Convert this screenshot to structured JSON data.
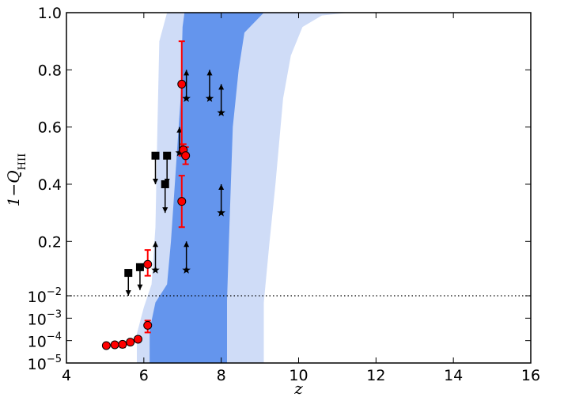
{
  "chart_data": {
    "type": "scatter",
    "title": "",
    "xlabel": "z",
    "ylabel": "1−Q",
    "ylabel_subscript": "HII",
    "xlim": [
      4,
      16
    ],
    "ylim_linear": [
      0.01,
      1.0
    ],
    "ylim_log": [
      1e-05,
      0.01
    ],
    "grid": false,
    "x_ticks": [
      {
        "value": 4,
        "label": "4"
      },
      {
        "value": 6,
        "label": "6"
      },
      {
        "value": 8,
        "label": "8"
      },
      {
        "value": 10,
        "label": "10"
      },
      {
        "value": 12,
        "label": "12"
      },
      {
        "value": 14,
        "label": "14"
      },
      {
        "value": 16,
        "label": "16"
      }
    ],
    "y_ticks_linear": [
      {
        "value": 0.2,
        "label": "0.2"
      },
      {
        "value": 0.4,
        "label": "0.4"
      },
      {
        "value": 0.6,
        "label": "0.6"
      },
      {
        "value": 0.8,
        "label": "0.8"
      },
      {
        "value": 1.0,
        "label": "1.0"
      }
    ],
    "y_ticks_log": [
      {
        "value": 1e-05,
        "base": "10",
        "exp": "-5"
      },
      {
        "value": 0.0001,
        "base": "10",
        "exp": "-4"
      },
      {
        "value": 0.001,
        "base": "10",
        "exp": "-3"
      },
      {
        "value": 0.01,
        "base": "10",
        "exp": "-2"
      }
    ],
    "bands": {
      "outer_color": "#cfdcf7",
      "inner_color": "#6495ed",
      "outer_left": [
        [
          5.82,
          1e-05
        ],
        [
          5.82,
          0.0002
        ],
        [
          6.0,
          0.003
        ],
        [
          6.2,
          0.05
        ],
        [
          6.3,
          0.25
        ],
        [
          6.35,
          0.6
        ],
        [
          6.4,
          0.9
        ],
        [
          6.6,
          1.0
        ]
      ],
      "outer_right": [
        [
          9.1,
          1e-05
        ],
        [
          9.1,
          0.005
        ],
        [
          9.25,
          0.2
        ],
        [
          9.4,
          0.4
        ],
        [
          9.6,
          0.7
        ],
        [
          9.8,
          0.85
        ],
        [
          10.1,
          0.95
        ],
        [
          10.6,
          0.99
        ],
        [
          11.3,
          1.0
        ]
      ],
      "inner_left": [
        [
          6.15,
          1e-05
        ],
        [
          6.15,
          0.0003
        ],
        [
          6.3,
          0.005
        ],
        [
          6.6,
          0.05
        ],
        [
          6.7,
          0.2
        ],
        [
          6.8,
          0.4
        ],
        [
          6.95,
          0.7
        ],
        [
          7.0,
          0.95
        ],
        [
          7.05,
          1.0
        ]
      ],
      "inner_right": [
        [
          8.15,
          1e-05
        ],
        [
          8.15,
          0.006
        ],
        [
          8.2,
          0.2
        ],
        [
          8.3,
          0.6
        ],
        [
          8.45,
          0.8
        ],
        [
          8.6,
          0.93
        ],
        [
          9.1,
          1.0
        ]
      ]
    },
    "dotted_line_y": 0.01,
    "series_red_circles": {
      "color": "#ff0000",
      "points": [
        {
          "x": 5.03,
          "y": 6e-05,
          "err_low": 0,
          "err_high": 0
        },
        {
          "x": 5.25,
          "y": 6.5e-05,
          "err_low": 0,
          "err_high": 0
        },
        {
          "x": 5.45,
          "y": 6.8e-05,
          "err_low": 1.8e-05,
          "err_high": 1.8e-05
        },
        {
          "x": 5.65,
          "y": 8.5e-05,
          "err_low": 1.8e-05,
          "err_high": 1.8e-05
        },
        {
          "x": 5.85,
          "y": 0.000115,
          "err_low": 1.5e-05,
          "err_high": 1.5e-05
        },
        {
          "x": 6.1,
          "y": 0.00048,
          "err_low": 0.00025,
          "err_high": 0.0003
        },
        {
          "x": 6.1,
          "y": 0.12,
          "err_low": 0.04,
          "err_high": 0.05
        },
        {
          "x": 6.98,
          "y": 0.75,
          "err_low": 0.25,
          "err_high": 0.15
        },
        {
          "x": 7.02,
          "y": 0.52,
          "err_low": 0.02,
          "err_high": 0.02
        },
        {
          "x": 7.08,
          "y": 0.5,
          "err_low": 0.03,
          "err_high": 0.03
        },
        {
          "x": 6.98,
          "y": 0.34,
          "err_low": 0.09,
          "err_high": 0.09
        }
      ]
    },
    "series_black_squares_upper_limits": {
      "color": "#000000",
      "points": [
        {
          "x": 5.6,
          "y": 0.09,
          "arrow_to": 0.01
        },
        {
          "x": 5.9,
          "y": 0.11,
          "arrow_to": 0.03
        },
        {
          "x": 6.3,
          "y": 0.5,
          "arrow_to": 0.4
        },
        {
          "x": 6.6,
          "y": 0.5,
          "arrow_to": 0.4
        },
        {
          "x": 6.55,
          "y": 0.4,
          "arrow_to": 0.3
        }
      ]
    },
    "series_black_stars_lower_limits": {
      "color": "#000000",
      "points": [
        {
          "x": 6.3,
          "y": 0.1,
          "arrow_to": 0.2
        },
        {
          "x": 6.92,
          "y": 0.51,
          "arrow_to": 0.6
        },
        {
          "x": 7.1,
          "y": 0.7,
          "arrow_to": 0.8
        },
        {
          "x": 7.1,
          "y": 0.1,
          "arrow_to": 0.2
        },
        {
          "x": 7.7,
          "y": 0.7,
          "arrow_to": 0.8
        },
        {
          "x": 8.0,
          "y": 0.65,
          "arrow_to": 0.75
        },
        {
          "x": 8.0,
          "y": 0.3,
          "arrow_to": 0.4
        }
      ]
    }
  }
}
